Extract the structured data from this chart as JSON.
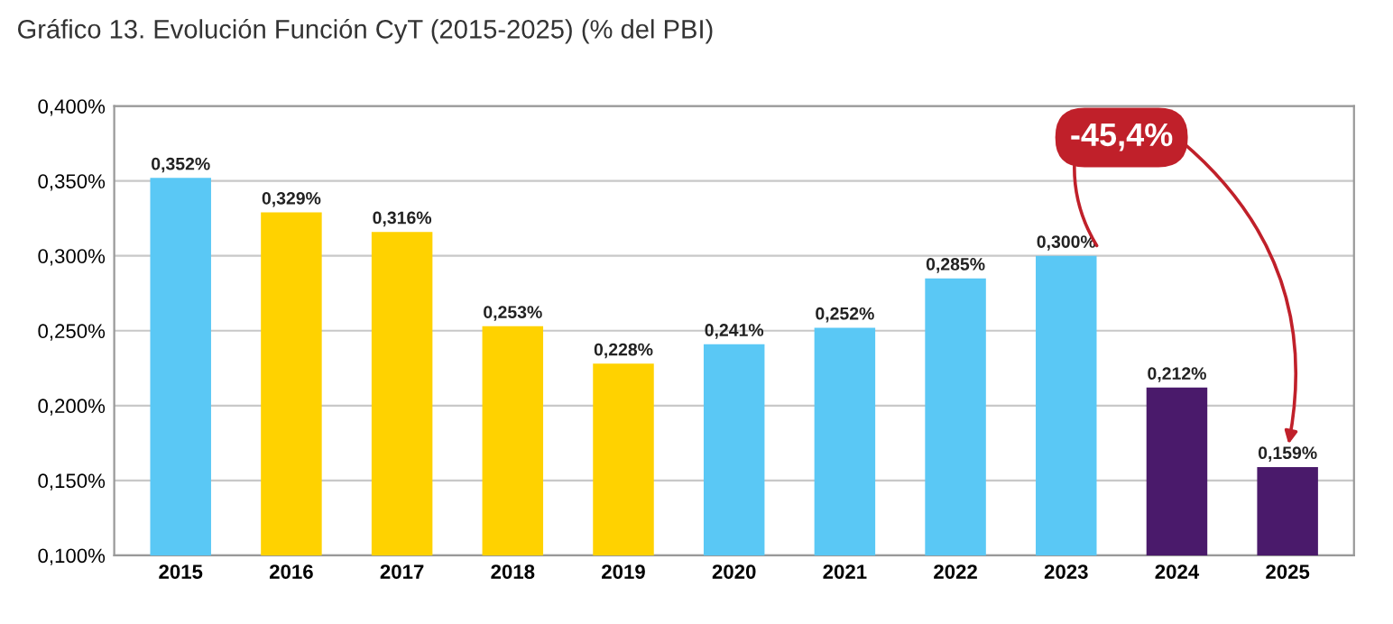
{
  "chart_data": {
    "type": "bar",
    "title": "Gráfico 13. Evolución Función CyT (2015-2025) (% del PBI)",
    "categories": [
      "2015",
      "2016",
      "2017",
      "2018",
      "2019",
      "2020",
      "2021",
      "2022",
      "2023",
      "2024",
      "2025"
    ],
    "values": [
      0.352,
      0.329,
      0.316,
      0.253,
      0.228,
      0.241,
      0.252,
      0.285,
      0.3,
      0.212,
      0.159
    ],
    "value_labels": [
      "0,352%",
      "0,329%",
      "0,316%",
      "0,253%",
      "0,228%",
      "0,241%",
      "0,252%",
      "0,285%",
      "0,300%",
      "0,212%",
      "0,159%"
    ],
    "colors": [
      "#5ac8f5",
      "#ffd200",
      "#ffd200",
      "#ffd200",
      "#ffd200",
      "#5ac8f5",
      "#5ac8f5",
      "#5ac8f5",
      "#5ac8f5",
      "#4a1a6b",
      "#4a1a6b"
    ],
    "ylim": [
      0.1,
      0.4
    ],
    "yticks": [
      {
        "value": 0.1,
        "label": "0,100%"
      },
      {
        "value": 0.15,
        "label": "0,150%"
      },
      {
        "value": 0.2,
        "label": "0,200%"
      },
      {
        "value": 0.25,
        "label": "0,250%"
      },
      {
        "value": 0.3,
        "label": "0,300%"
      },
      {
        "value": 0.35,
        "label": "0,350%"
      },
      {
        "value": 0.4,
        "label": "0,400%"
      }
    ],
    "grid": "y",
    "annotations": [
      "-45,4%"
    ]
  }
}
